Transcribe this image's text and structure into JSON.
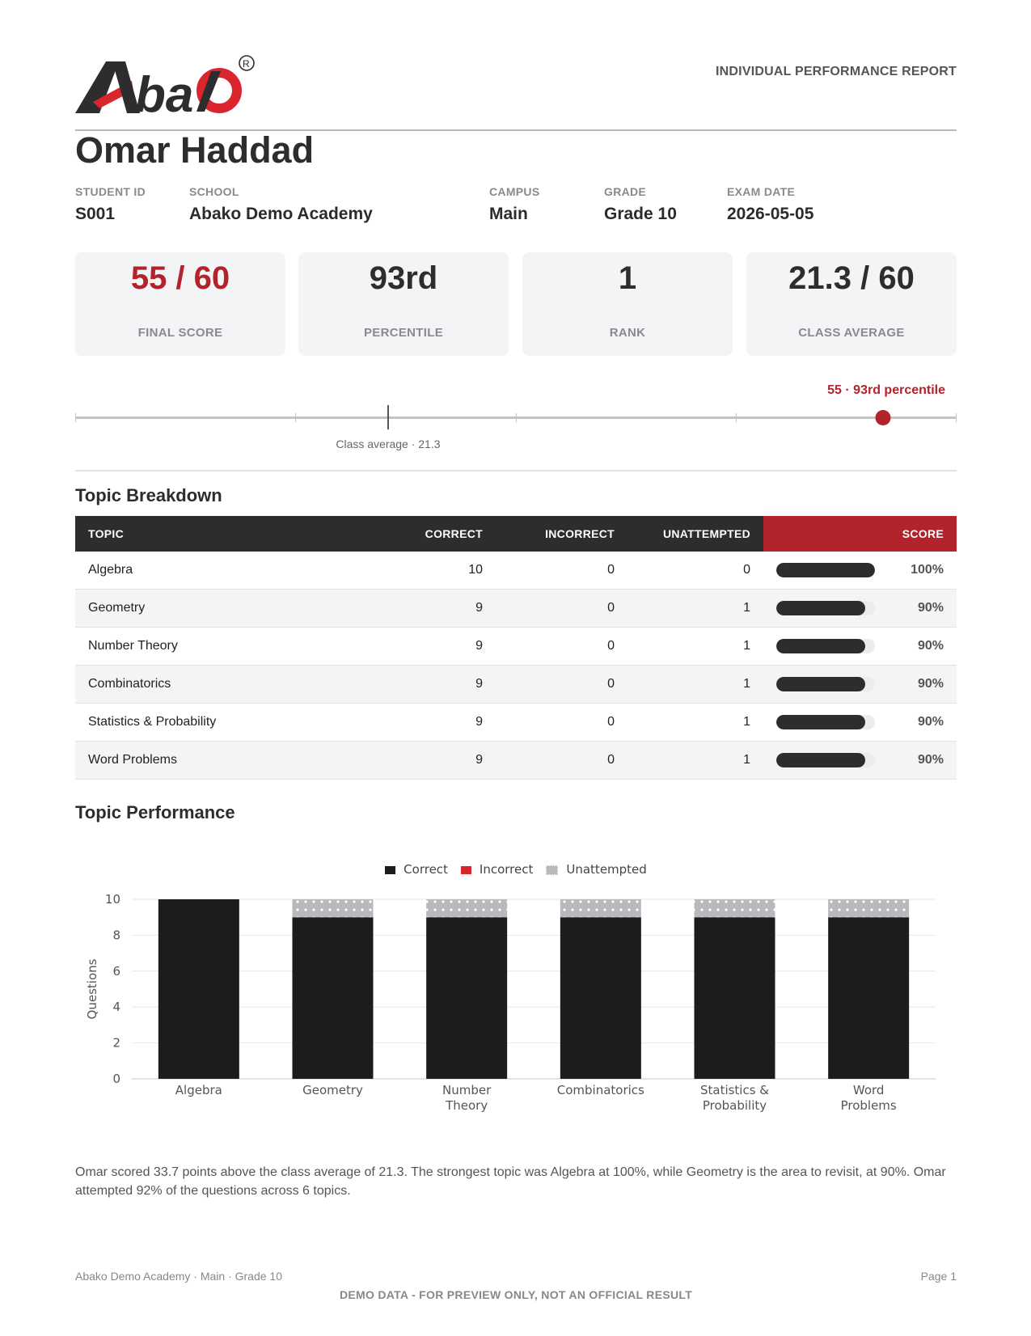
{
  "brand": {
    "logo_text": "Abako",
    "registered_mark": "®",
    "accent_color": "#b3232b",
    "dark_color": "#2d2d2f"
  },
  "report_title": "INDIVIDUAL PERFORMANCE REPORT",
  "student": {
    "name": "Omar Haddad"
  },
  "info_fields": [
    {
      "label": "STUDENT ID",
      "value": "S001"
    },
    {
      "label": "SCHOOL",
      "value": "Abako Demo Academy"
    },
    {
      "label": "CAMPUS",
      "value": "Main"
    },
    {
      "label": "GRADE",
      "value": "Grade 10"
    },
    {
      "label": "EXAM DATE",
      "value": "2026-05-05"
    }
  ],
  "stats": [
    {
      "value": "55 / 60",
      "caption": "FINAL SCORE"
    },
    {
      "value": "93rd",
      "caption": "PERCENTILE"
    },
    {
      "value": "1",
      "caption": "RANK"
    },
    {
      "value": "21.3 / 60",
      "caption": "CLASS AVERAGE"
    }
  ],
  "range": {
    "max": 60,
    "score": 55,
    "class_average": 21.3,
    "score_label": "55 · 93rd percentile",
    "average_label": "Class average · 21.3"
  },
  "sections": {
    "breakdown": "Topic Breakdown",
    "performance": "Topic Performance"
  },
  "table": {
    "headers": {
      "topic": "TOPIC",
      "correct": "CORRECT",
      "incorrect": "INCORRECT",
      "unattempted": "UNATTEMPTED",
      "score": "SCORE"
    },
    "rows": [
      {
        "topic": "Algebra",
        "correct": "10",
        "incorrect": "0",
        "unattempted": "0",
        "score": "100%",
        "fraction": 1.0
      },
      {
        "topic": "Geometry",
        "correct": "9",
        "incorrect": "0",
        "unattempted": "1",
        "score": "90%",
        "fraction": 0.9
      },
      {
        "topic": "Number Theory",
        "correct": "9",
        "incorrect": "0",
        "unattempted": "1",
        "score": "90%",
        "fraction": 0.9
      },
      {
        "topic": "Combinatorics",
        "correct": "9",
        "incorrect": "0",
        "unattempted": "1",
        "score": "90%",
        "fraction": 0.9
      },
      {
        "topic": "Statistics & Probability",
        "correct": "9",
        "incorrect": "0",
        "unattempted": "1",
        "score": "90%",
        "fraction": 0.9
      },
      {
        "topic": "Word Problems",
        "correct": "9",
        "incorrect": "0",
        "unattempted": "1",
        "score": "90%",
        "fraction": 0.9
      }
    ]
  },
  "chart_data": {
    "type": "bar",
    "stacked": true,
    "categories": [
      [
        "Algebra"
      ],
      [
        "Geometry"
      ],
      [
        "Number",
        "Theory"
      ],
      [
        "Combinatorics"
      ],
      [
        "Statistics &",
        "Probability"
      ],
      [
        "Word",
        "Problems"
      ]
    ],
    "series": [
      {
        "name": "Correct",
        "values": [
          10,
          9,
          9,
          9,
          9,
          9
        ],
        "color": "#1c1c1e"
      },
      {
        "name": "Incorrect",
        "values": [
          0,
          0,
          0,
          0,
          0,
          0
        ],
        "color": "#d9262e"
      },
      {
        "name": "Unattempted",
        "values": [
          0,
          1,
          1,
          1,
          1,
          1
        ],
        "color": "#b8b9bd"
      }
    ],
    "ylabel": "Questions",
    "ylim": [
      0,
      10
    ],
    "yticks": [
      0,
      2,
      4,
      6,
      8,
      10
    ],
    "grid": true,
    "legend_position": "top"
  },
  "summary": "Omar scored 33.7 points above the class average of 21.3. The strongest topic was Algebra at 100%, while Geometry is the area to revisit, at 90%. Omar attempted 92% of the questions across 6 topics.",
  "footer": {
    "left": "Abako Demo Academy · Main · Grade 10",
    "right": "Page 1",
    "notice": "DEMO DATA - FOR PREVIEW ONLY, NOT AN OFFICIAL RESULT"
  }
}
